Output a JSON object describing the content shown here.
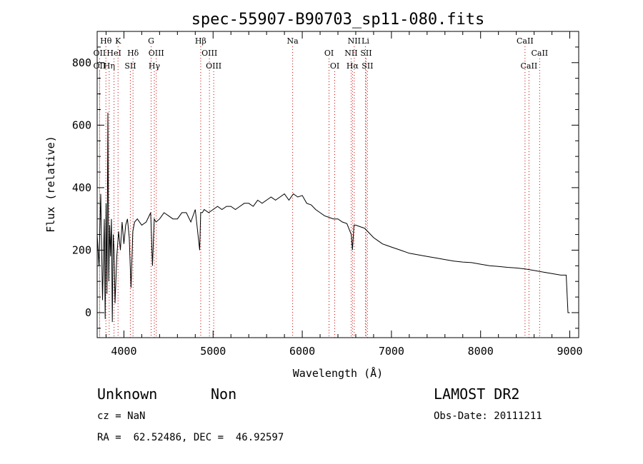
{
  "chart_data": {
    "type": "line",
    "title": "spec-55907-B90703_sp11-080.fits",
    "xlabel": "Wavelength (Å)",
    "ylabel": "Flux (relative)",
    "xlim": [
      3700,
      9100
    ],
    "ylim": [
      -80,
      900
    ],
    "x_ticks": [
      4000,
      5000,
      6000,
      7000,
      8000,
      9000
    ],
    "y_ticks": [
      0,
      200,
      400,
      600,
      800
    ],
    "grid": false,
    "series": [
      {
        "x": [
          3700,
          3720,
          3740,
          3760,
          3780,
          3790,
          3800,
          3810,
          3820,
          3830,
          3840,
          3850,
          3860,
          3870,
          3880,
          3890,
          3900,
          3920,
          3940,
          3960,
          3980,
          4000,
          4020,
          4040,
          4060,
          4080,
          4100,
          4120,
          4150,
          4200,
          4250,
          4300,
          4320,
          4340,
          4360,
          4400,
          4450,
          4500,
          4550,
          4600,
          4650,
          4700,
          4750,
          4800,
          4850,
          4861,
          4880,
          4900,
          4950,
          5000,
          5050,
          5100,
          5150,
          5200,
          5250,
          5300,
          5350,
          5400,
          5450,
          5500,
          5550,
          5600,
          5650,
          5700,
          5750,
          5800,
          5850,
          5900,
          5950,
          6000,
          6050,
          6100,
          6150,
          6200,
          6250,
          6300,
          6350,
          6400,
          6450,
          6500,
          6550,
          6563,
          6580,
          6600,
          6650,
          6700,
          6750,
          6800,
          6850,
          6900,
          6950,
          7000,
          7100,
          7200,
          7300,
          7400,
          7500,
          7600,
          7700,
          7800,
          7900,
          8000,
          8100,
          8200,
          8300,
          8400,
          8500,
          8600,
          8700,
          8800,
          8900,
          8960,
          8980,
          9000
        ],
        "values": [
          250,
          150,
          380,
          40,
          300,
          -20,
          350,
          60,
          640,
          100,
          280,
          180,
          300,
          -30,
          250,
          200,
          30,
          180,
          260,
          200,
          290,
          220,
          280,
          300,
          240,
          80,
          260,
          290,
          300,
          280,
          290,
          320,
          150,
          300,
          290,
          300,
          320,
          310,
          300,
          300,
          320,
          320,
          290,
          330,
          200,
          320,
          320,
          330,
          320,
          330,
          340,
          330,
          340,
          340,
          330,
          340,
          350,
          350,
          340,
          360,
          350,
          360,
          370,
          360,
          370,
          380,
          360,
          380,
          370,
          375,
          350,
          345,
          330,
          320,
          310,
          305,
          300,
          300,
          290,
          285,
          250,
          200,
          280,
          280,
          275,
          270,
          255,
          240,
          230,
          220,
          215,
          210,
          200,
          190,
          185,
          180,
          175,
          170,
          165,
          162,
          160,
          155,
          150,
          148,
          145,
          143,
          140,
          135,
          130,
          125,
          120,
          120,
          0,
          0
        ]
      }
    ],
    "lines": [
      {
        "name": "Hθ",
        "x": 3798,
        "row": 0
      },
      {
        "name": "OII",
        "x": 3727,
        "row": 1
      },
      {
        "name": "OII",
        "x": 3727,
        "row": 2
      },
      {
        "name": "Hη",
        "x": 3835,
        "row": 2
      },
      {
        "name": "K",
        "x": 3934,
        "row": 0
      },
      {
        "name": "HeI",
        "x": 3889,
        "row": 1
      },
      {
        "name": "Hδ",
        "x": 4102,
        "row": 1
      },
      {
        "name": "SII",
        "x": 4072,
        "row": 2
      },
      {
        "name": "G",
        "x": 4305,
        "row": 0
      },
      {
        "name": "OIII",
        "x": 4363,
        "row": 1
      },
      {
        "name": "Hγ",
        "x": 4341,
        "row": 2
      },
      {
        "name": "Hβ",
        "x": 4861,
        "row": 0
      },
      {
        "name": "OIII",
        "x": 4959,
        "row": 1
      },
      {
        "name": "OIII",
        "x": 5007,
        "row": 2
      },
      {
        "name": "Na",
        "x": 5892,
        "row": 0
      },
      {
        "name": "OI",
        "x": 6300,
        "row": 1
      },
      {
        "name": "OI",
        "x": 6364,
        "row": 2
      },
      {
        "name": "NII",
        "x": 6583,
        "row": 0
      },
      {
        "name": "Li",
        "x": 6708,
        "row": 0
      },
      {
        "name": "NII",
        "x": 6548,
        "row": 1
      },
      {
        "name": "SII",
        "x": 6716,
        "row": 1
      },
      {
        "name": "Hα",
        "x": 6563,
        "row": 2
      },
      {
        "name": "SII",
        "x": 6731,
        "row": 2
      },
      {
        "name": "CaII",
        "x": 8498,
        "row": 0
      },
      {
        "name": "CaII",
        "x": 8662,
        "row": 1
      },
      {
        "name": "CaII",
        "x": 8542,
        "row": 2
      }
    ],
    "line_color": "#cc0000"
  },
  "info": {
    "class": "Unknown",
    "subclass": "Non",
    "survey": "LAMOST DR2",
    "cz": "cz = NaN",
    "obs_date": "Obs-Date: 20111211",
    "coords": "RA =  62.52486, DEC =  46.92597"
  }
}
